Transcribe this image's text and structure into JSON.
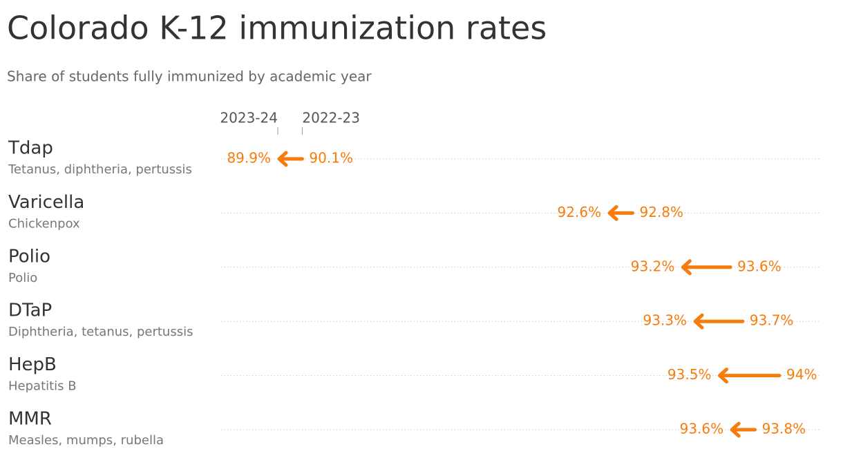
{
  "chart_data": {
    "type": "arrow",
    "title": "Colorado K-12 immunization rates",
    "subtitle": "Share of students fully immunized by academic year",
    "categories": [
      "Tdap",
      "Varicella",
      "Polio",
      "DTaP",
      "HepB",
      "MMR"
    ],
    "descriptions": [
      "Tetanus, diphtheria, pertussis",
      "Chickenpox",
      "Polio",
      "Diphtheria, tetanus, pertussis",
      "Hepatitis B",
      "Measles, mumps, rubella"
    ],
    "color": "#f77c0c",
    "series": [
      {
        "name": "2023-24",
        "values": [
          89.9,
          92.6,
          93.2,
          93.3,
          93.5,
          93.6
        ],
        "value_labels": [
          "89.9%",
          "92.6%",
          "93.2%",
          "93.3%",
          "93.5%",
          "93.6%"
        ]
      },
      {
        "name": "2022-23",
        "values": [
          90.1,
          92.8,
          93.6,
          93.7,
          94,
          93.8
        ],
        "value_labels": [
          "90.1%",
          "92.8%",
          "93.6%",
          "93.7%",
          "94%",
          "93.8%"
        ]
      }
    ]
  }
}
